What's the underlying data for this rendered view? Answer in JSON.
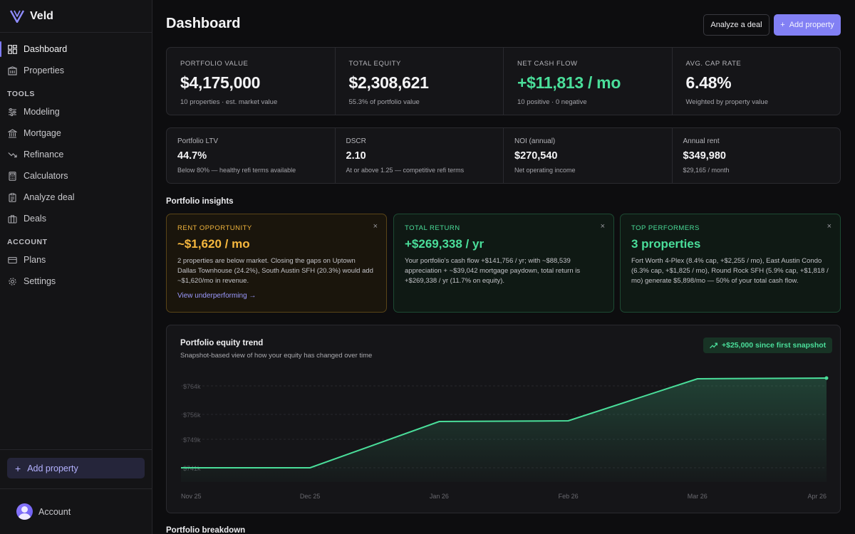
{
  "app": {
    "name": "Veld"
  },
  "sidebar": {
    "top_items": [
      {
        "label": "Dashboard",
        "icon": "dashboard-icon",
        "active": true
      },
      {
        "label": "Properties",
        "icon": "building-icon"
      }
    ],
    "tools_heading": "TOOLS",
    "tools": [
      {
        "label": "Modeling",
        "icon": "sliders-icon"
      },
      {
        "label": "Mortgage",
        "icon": "bank-icon"
      },
      {
        "label": "Refinance",
        "icon": "trend-down-icon"
      },
      {
        "label": "Calculators",
        "icon": "calculator-icon"
      },
      {
        "label": "Analyze deal",
        "icon": "clipboard-icon"
      },
      {
        "label": "Deals",
        "icon": "briefcase-icon"
      }
    ],
    "account_heading": "ACCOUNT",
    "account_items": [
      {
        "label": "Plans",
        "icon": "card-icon"
      },
      {
        "label": "Settings",
        "icon": "gear-icon"
      }
    ],
    "add_property_label": "Add property",
    "account_label": "Account"
  },
  "header": {
    "title": "Dashboard",
    "analyze_label": "Analyze a deal",
    "add_property_label": "Add property"
  },
  "kpis": [
    {
      "label": "PORTFOLIO VALUE",
      "value": "$4,175,000",
      "sub": "10 properties · est. market value"
    },
    {
      "label": "TOTAL EQUITY",
      "value": "$2,308,621",
      "sub": "55.3% of portfolio value"
    },
    {
      "label": "NET CASH FLOW",
      "value": "+$11,813 / mo",
      "sub": "10 positive · 0 negative"
    },
    {
      "label": "AVG. CAP RATE",
      "value": "6.48%",
      "sub": "Weighted by property value"
    }
  ],
  "stats": [
    {
      "label": "Portfolio LTV",
      "value": "44.7%",
      "sub": "Below 80% — healthy refi terms available"
    },
    {
      "label": "DSCR",
      "value": "2.10",
      "sub": "At or above 1.25 — competitive refi terms"
    },
    {
      "label": "NOI (annual)",
      "value": "$270,540",
      "sub": "Net operating income"
    },
    {
      "label": "Annual rent",
      "value": "$349,980",
      "sub": "$29,165 / month"
    }
  ],
  "insights_title": "Portfolio insights",
  "insights": [
    {
      "label": "RENT OPPORTUNITY",
      "value": "~$1,620 / mo",
      "text": "2 properties are below market. Closing the gaps on Uptown Dallas Townhouse (24.2%), South Austin SFH (20.3%) would add ~$1,620/mo in revenue.",
      "link": "View underperforming →",
      "close": "×"
    },
    {
      "label": "TOTAL RETURN",
      "value": "+$269,338 / yr",
      "text": "Your portfolio's cash flow +$141,756 / yr; with ~$88,539 appreciation + ~$39,042 mortgage paydown, total return is +$269,338 / yr (11.7% on equity).",
      "close": "×"
    },
    {
      "label": "TOP PERFORMERS",
      "value": "3 properties",
      "text": "Fort Worth 4-Plex (8.4% cap, +$2,255 / mo), East Austin Condo (6.3% cap, +$1,825 / mo), Round Rock SFH (5.9% cap, +$1,818 / mo) generate $5,898/mo — 50% of your total cash flow.",
      "close": "×"
    }
  ],
  "trend": {
    "title": "Portfolio equity trend",
    "subtitle": "Snapshot-based view of how your equity has changed over time",
    "badge": "+$25,000 since first snapshot"
  },
  "chart_data": {
    "type": "area",
    "x": [
      "Nov 25",
      "Dec 25",
      "Jan 26",
      "Feb 26",
      "Mar 26",
      "Apr 26"
    ],
    "values": [
      741000,
      741000,
      754000,
      754200,
      766000,
      766200
    ],
    "ytick_labels": [
      "$764k",
      "$756k",
      "$749k",
      "$741k"
    ],
    "ytick_values": [
      764000,
      756000,
      749000,
      741000
    ],
    "ylim": [
      737000,
      769000
    ],
    "line_color": "#4ade9a",
    "grid": true
  },
  "breakdown_title": "Portfolio breakdown",
  "colors": {
    "accent": "#8280f4",
    "positive": "#4ade9a",
    "warning": "#f5b73e"
  }
}
